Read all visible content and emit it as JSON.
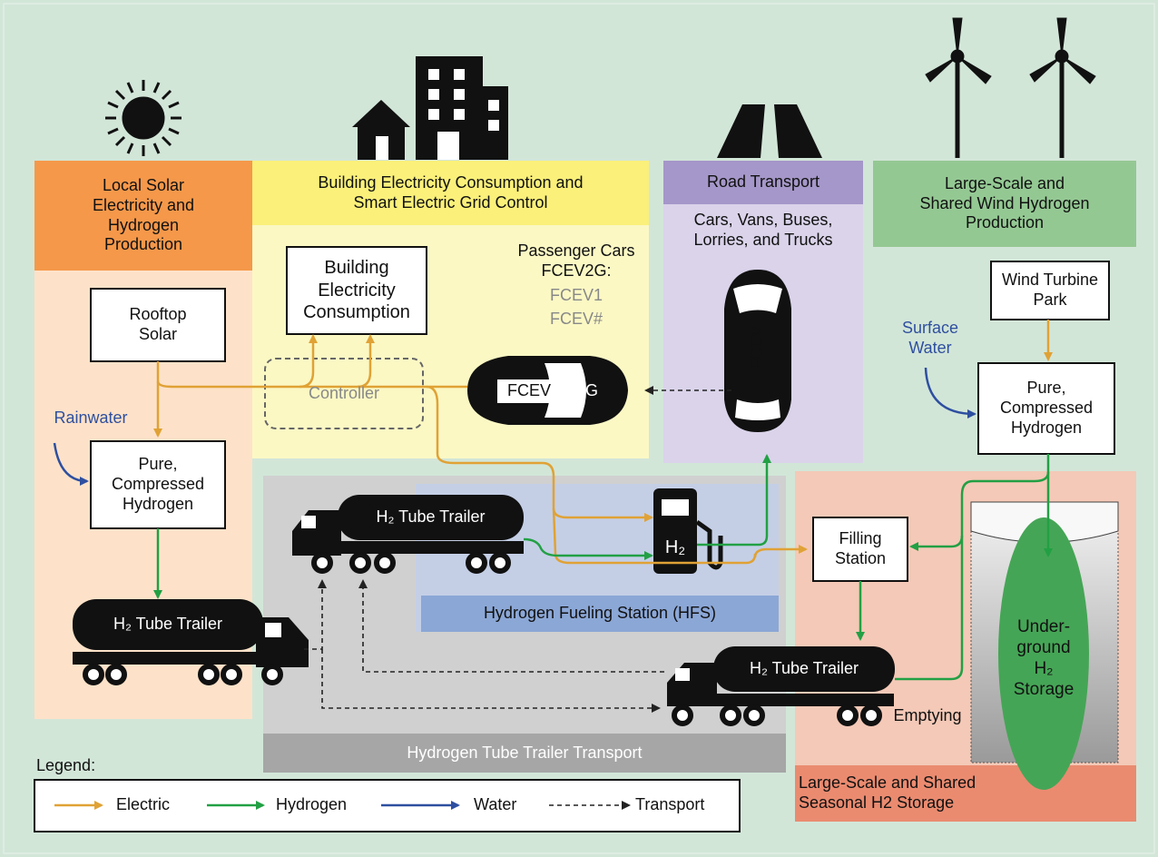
{
  "sections": {
    "solar": "Local Solar Electricity and Hydrogen Production",
    "building": "Building Electricity Consumption and Smart Electric Grid Control",
    "road": {
      "title": "Road Transport",
      "subtitle": "Cars, Vans, Buses, Lorries, and Trucks"
    },
    "wind": "Large-Scale and Shared Wind Hydrogen Production",
    "fueling_station": "Hydrogen Fueling Station (HFS)",
    "tube_trailer_transport": "Hydrogen Tube Trailer Transport",
    "seasonal_storage": "Large-Scale and Shared Seasonal H2 Storage"
  },
  "nodes": {
    "rooftop_solar": "Rooftop Solar",
    "rainwater": "Rainwater",
    "solar_hydrogen": "Pure, Compressed Hydrogen",
    "solar_trailer": "H₂ Tube Trailer",
    "building_consumption": "Building Electricity Consumption",
    "controller": "Controller",
    "passenger_cars": "Passenger Cars FCEV2G:",
    "fcev1": "FCEV1",
    "fcev_n": "FCEV#",
    "v2g_car": "FCEV",
    "v2g": "V2G",
    "road_car": "FCEV",
    "transport_trailer": "H₂ Tube Trailer",
    "pump": "H₂",
    "wind_park": "Wind Turbine Park",
    "surface_water": "Surface Water",
    "wind_hydrogen": "Pure, Compressed Hydrogen",
    "filling_station": "Filling Station",
    "storage_trailer": "H₂ Tube Trailer",
    "emptying": "Emptying",
    "underground": "Under-ground H₂ Storage"
  },
  "legend": {
    "title": "Legend:",
    "items": [
      "Electric",
      "Hydrogen",
      "Water",
      "Transport"
    ]
  }
}
